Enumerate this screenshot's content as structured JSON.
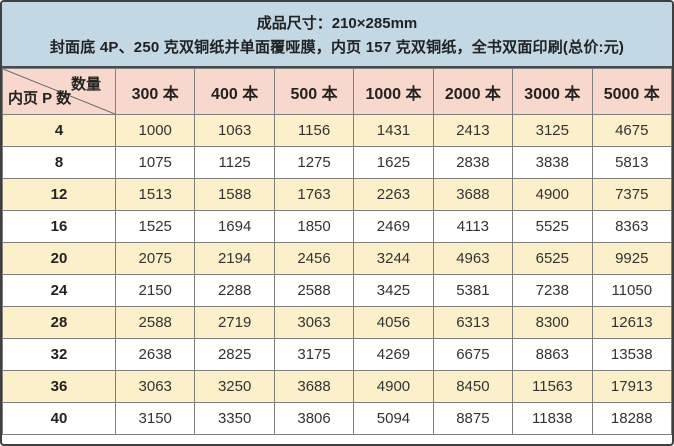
{
  "banner": {
    "line1": "成品尺寸：210×285mm",
    "line2": "封面底 4P、250 克双铜纸并单面覆哑膜，内页 157 克双铜纸，全书双面印刷(总价:元)"
  },
  "chart_data": {
    "type": "table",
    "title": "成品尺寸：210×285mm",
    "subtitle": "封面底 4P、250 克双铜纸并单面覆哑膜，内页 157 克双铜纸，全书双面印刷(总价:元)",
    "corner_label_top": "数量",
    "corner_label_bottom": "内页 P 数",
    "columns": [
      "300 本",
      "400 本",
      "500 本",
      "1000 本",
      "2000 本",
      "3000 本",
      "5000 本"
    ],
    "rows": [
      {
        "pages": "4",
        "prices": [
          1000,
          1063,
          1156,
          1431,
          2413,
          3125,
          4675
        ]
      },
      {
        "pages": "8",
        "prices": [
          1075,
          1125,
          1275,
          1625,
          2838,
          3838,
          5813
        ]
      },
      {
        "pages": "12",
        "prices": [
          1513,
          1588,
          1763,
          2263,
          3688,
          4900,
          7375
        ]
      },
      {
        "pages": "16",
        "prices": [
          1525,
          1694,
          1850,
          2469,
          4113,
          5525,
          8363
        ]
      },
      {
        "pages": "20",
        "prices": [
          2075,
          2194,
          2456,
          3244,
          4963,
          6525,
          9925
        ]
      },
      {
        "pages": "24",
        "prices": [
          2150,
          2288,
          2588,
          3425,
          5381,
          7238,
          11050
        ]
      },
      {
        "pages": "28",
        "prices": [
          2588,
          2719,
          3063,
          4056,
          6313,
          8300,
          12613
        ]
      },
      {
        "pages": "32",
        "prices": [
          2638,
          2825,
          3175,
          4269,
          6675,
          8863,
          13538
        ]
      },
      {
        "pages": "36",
        "prices": [
          3063,
          3250,
          3688,
          4900,
          8450,
          11563,
          17913
        ]
      },
      {
        "pages": "40",
        "prices": [
          3150,
          3350,
          3806,
          5094,
          8875,
          11838,
          18288
        ]
      }
    ]
  },
  "colors": {
    "banner_bg": "#c3d8e5",
    "header_bg": "#f8d8cc",
    "row_alt_bg": "#fbf0c9",
    "row_bg": "#ffffff",
    "grid_line": "#7e7e7e",
    "outer_border": "#3f3f3f",
    "text": "#2d2d2d"
  }
}
